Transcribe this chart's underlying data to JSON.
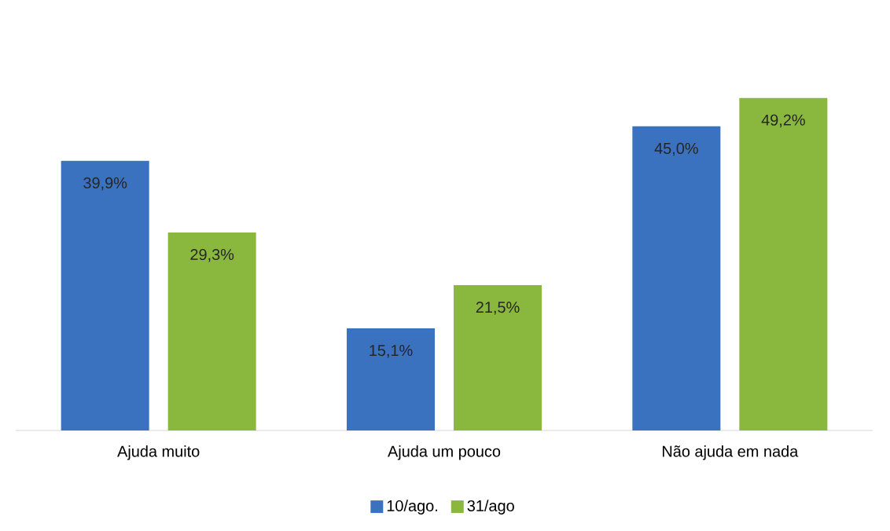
{
  "chart_data": {
    "type": "bar",
    "categories": [
      "Ajuda muito",
      "Ajuda um pouco",
      "Não ajuda em nada"
    ],
    "series": [
      {
        "name": "10/ago.",
        "color": "#3b72c0",
        "values": [
          39.9,
          15.1,
          45.0
        ],
        "value_labels": [
          "39,9%",
          "15,1%",
          "45,0%"
        ]
      },
      {
        "name": "31/ago",
        "color": "#8ab83e",
        "values": [
          29.3,
          21.5,
          49.2
        ],
        "value_labels": [
          "29,3%",
          "21,5%",
          "49,2%"
        ]
      }
    ],
    "legend": "bottom"
  }
}
